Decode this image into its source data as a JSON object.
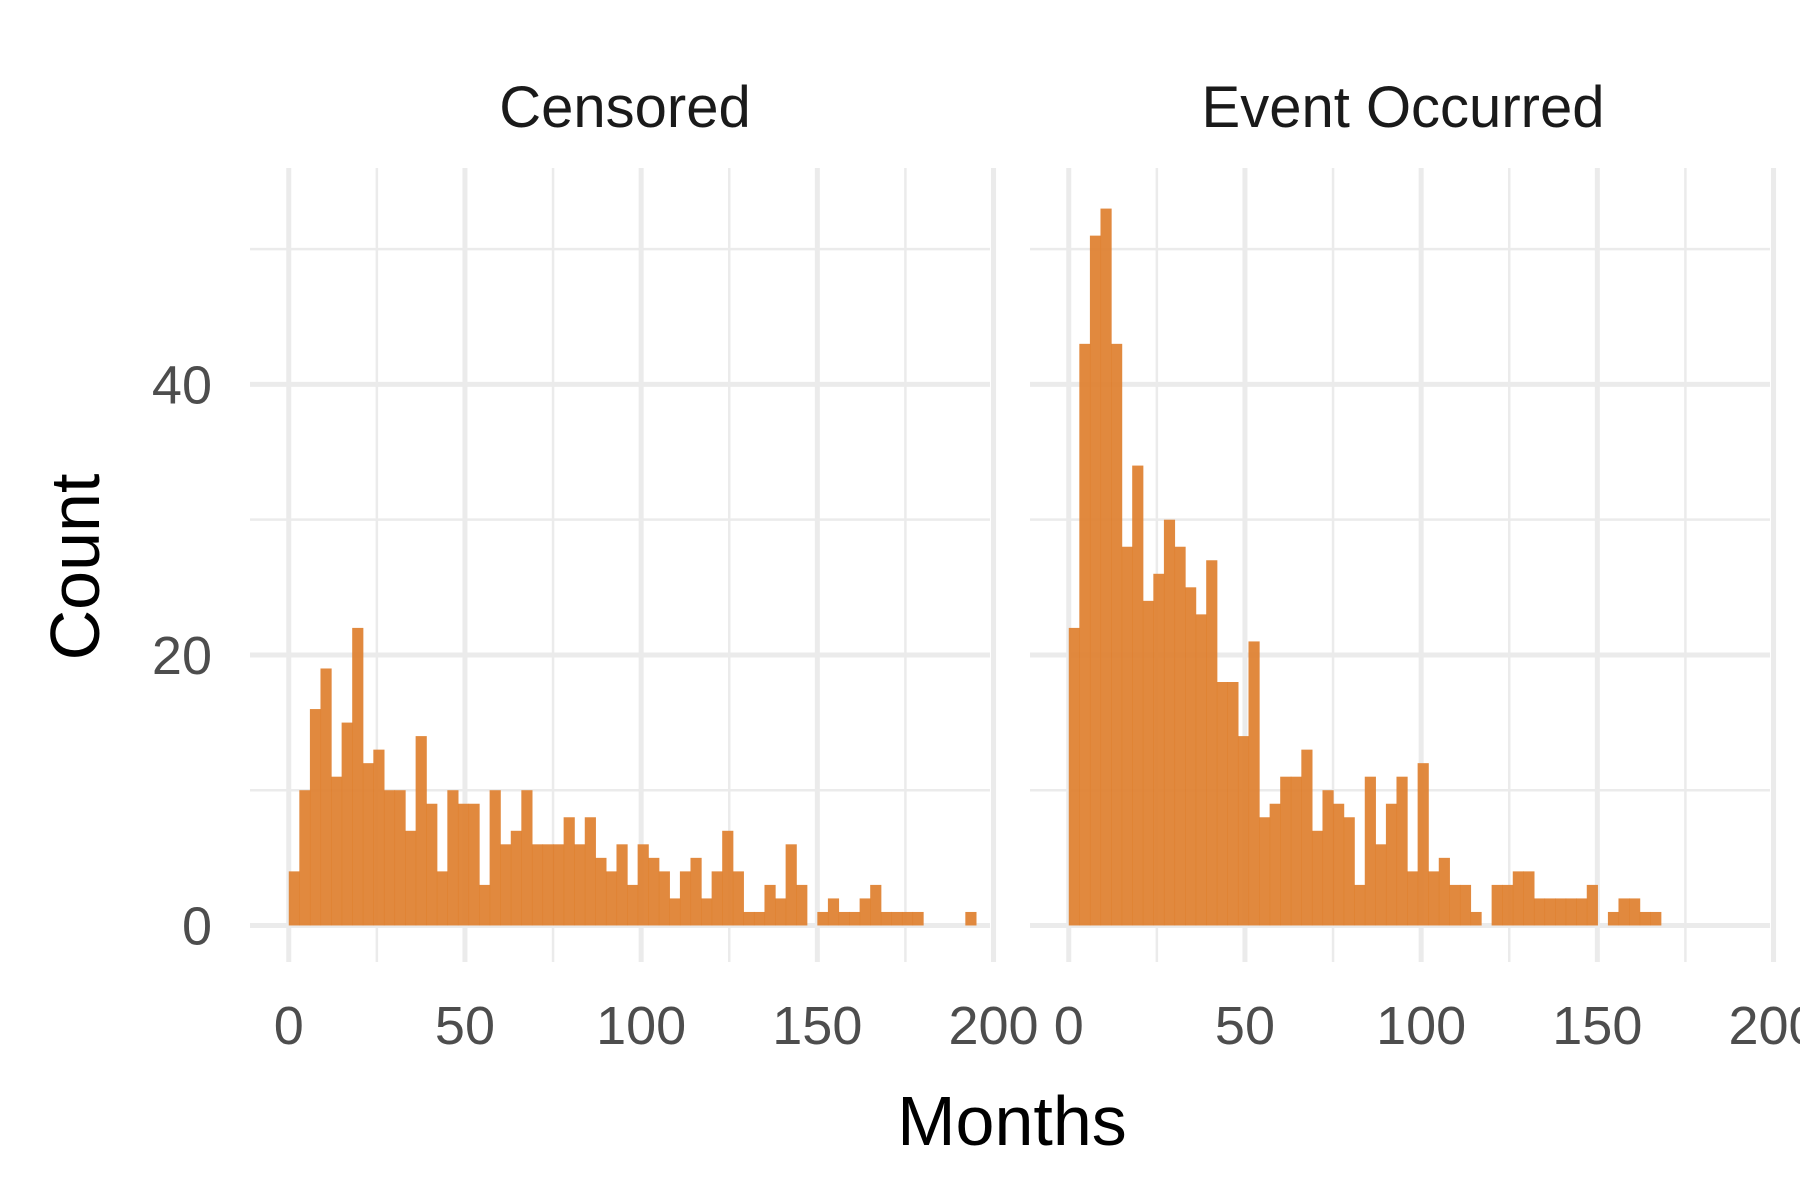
{
  "chart_data": {
    "type": "bar",
    "xlabel": "Months",
    "ylabel": "Count",
    "bin_width": 3,
    "xlim": [
      -11,
      199
    ],
    "ylim": [
      -2.7,
      56
    ],
    "x_ticks": [
      0,
      50,
      100,
      150,
      200
    ],
    "x_tick_labels": [
      "0",
      "50",
      "100",
      "150",
      "200"
    ],
    "y_ticks": [
      0,
      20,
      40
    ],
    "y_tick_labels": [
      "0",
      "20",
      "40"
    ],
    "grid": true,
    "colors": {
      "bar": "#DE7F2E",
      "grid": "#EBEBEB"
    },
    "panels": [
      {
        "label": "Censored",
        "bin_starts": [
          0,
          3,
          6,
          9,
          12,
          15,
          18,
          21,
          24,
          27,
          30,
          33,
          36,
          39,
          42,
          45,
          48,
          51,
          54,
          57,
          60,
          63,
          66,
          69,
          72,
          75,
          78,
          81,
          84,
          87,
          90,
          93,
          96,
          99,
          102,
          105,
          108,
          111,
          114,
          117,
          120,
          123,
          126,
          129,
          132,
          135,
          138,
          141,
          144,
          147,
          150,
          153,
          156,
          159,
          162,
          165,
          168,
          171,
          174,
          177,
          180,
          183,
          186,
          189,
          192,
          195
        ],
        "values": [
          4,
          10,
          16,
          19,
          11,
          15,
          22,
          12,
          13,
          10,
          10,
          7,
          14,
          9,
          4,
          10,
          9,
          9,
          3,
          10,
          6,
          7,
          10,
          6,
          6,
          6,
          8,
          6,
          8,
          5,
          4,
          6,
          3,
          6,
          5,
          4,
          2,
          4,
          5,
          2,
          4,
          7,
          4,
          1,
          1,
          3,
          2,
          6,
          3,
          0,
          1,
          2,
          1,
          1,
          2,
          3,
          1,
          1,
          1,
          1,
          0,
          0,
          0,
          0,
          1,
          0
        ]
      },
      {
        "label": "Event Occurred",
        "bin_starts": [
          0,
          3,
          6,
          9,
          12,
          15,
          18,
          21,
          24,
          27,
          30,
          33,
          36,
          39,
          42,
          45,
          48,
          51,
          54,
          57,
          60,
          63,
          66,
          69,
          72,
          75,
          78,
          81,
          84,
          87,
          90,
          93,
          96,
          99,
          102,
          105,
          108,
          111,
          114,
          117,
          120,
          123,
          126,
          129,
          132,
          135,
          138,
          141,
          144,
          147,
          150,
          153,
          156,
          159,
          162,
          165,
          168,
          171
        ],
        "values": [
          22,
          43,
          51,
          53,
          43,
          28,
          34,
          24,
          26,
          30,
          28,
          25,
          23,
          27,
          18,
          18,
          14,
          21,
          8,
          9,
          11,
          11,
          13,
          7,
          10,
          9,
          8,
          3,
          11,
          6,
          9,
          11,
          4,
          12,
          4,
          5,
          3,
          3,
          1,
          0,
          3,
          3,
          4,
          4,
          2,
          2,
          2,
          2,
          2,
          3,
          0,
          1,
          2,
          2,
          1,
          1,
          0,
          0
        ]
      }
    ]
  }
}
